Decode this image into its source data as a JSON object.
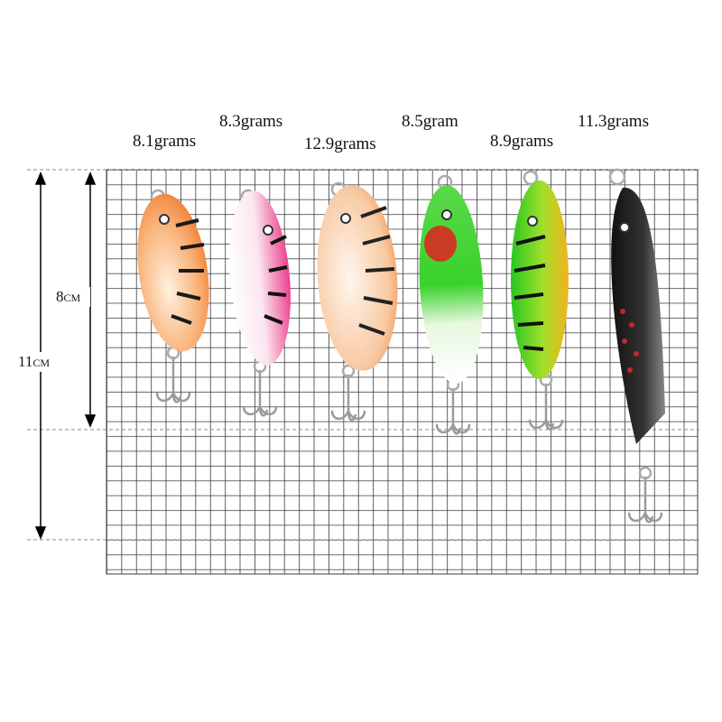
{
  "weights": [
    "8.1grams",
    "8.3grams",
    "12.9grams",
    "8.5gram",
    "8.9grams",
    "11.3grams"
  ],
  "measurements": {
    "short": "8cm",
    "long": "11cm"
  }
}
